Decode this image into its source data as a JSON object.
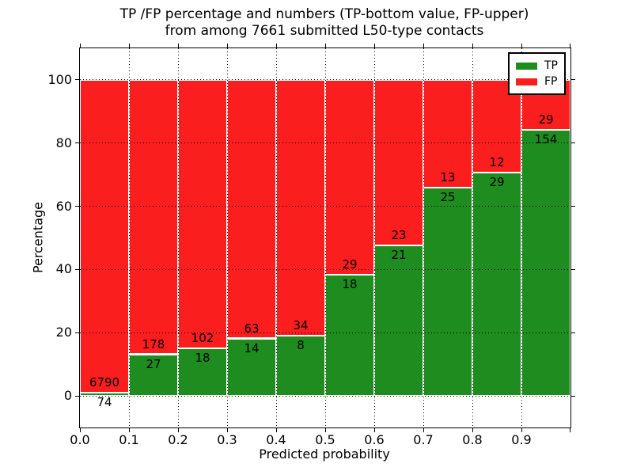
{
  "title": {
    "line1": "TP /FP percentage and numbers (TP-bottom value, FP-upper)",
    "line2": "from among 7661 submitted L50-type contacts"
  },
  "axes": {
    "xlabel": "Predicted probability",
    "ylabel": "Percentage"
  },
  "legend": {
    "items": [
      {
        "label": "TP",
        "color": "#1e8c1e"
      },
      {
        "label": "FP",
        "color": "#fa1e1e"
      }
    ]
  },
  "chart_data": {
    "type": "bar",
    "stacked": true,
    "title": "TP /FP percentage and numbers (TP-bottom value, FP-upper) from among 7661 submitted L50-type contacts",
    "xlabel": "Predicted probability",
    "ylabel": "Percentage",
    "total_contacts": 7661,
    "bin_starts": [
      0.0,
      0.1,
      0.2,
      0.3,
      0.4,
      0.5,
      0.6,
      0.7,
      0.8,
      0.9
    ],
    "bin_width": 0.1,
    "series": [
      {
        "name": "TP",
        "color": "#1e8c1e",
        "counts": [
          74,
          27,
          18,
          14,
          8,
          18,
          21,
          25,
          29,
          154
        ]
      },
      {
        "name": "FP",
        "color": "#fa1e1e",
        "counts": [
          6790,
          178,
          102,
          63,
          34,
          29,
          23,
          13,
          12,
          29
        ]
      }
    ],
    "tp_percent": [
      1.1,
      13.2,
      15.0,
      18.2,
      19.0,
      38.3,
      47.7,
      65.8,
      70.7,
      84.2
    ],
    "fp_percent": [
      98.9,
      86.8,
      85.0,
      81.8,
      81.0,
      61.7,
      52.3,
      34.2,
      29.3,
      15.8
    ],
    "xticks": [
      "0.0",
      "0.1",
      "0.2",
      "0.3",
      "0.4",
      "0.5",
      "0.6",
      "0.7",
      "0.8",
      "0.9"
    ],
    "yticks": [
      0,
      20,
      40,
      60,
      80,
      100
    ],
    "xlim": [
      0.0,
      1.0
    ],
    "ylim": [
      -10,
      110
    ],
    "grid": true,
    "legend_position": "upper right"
  }
}
